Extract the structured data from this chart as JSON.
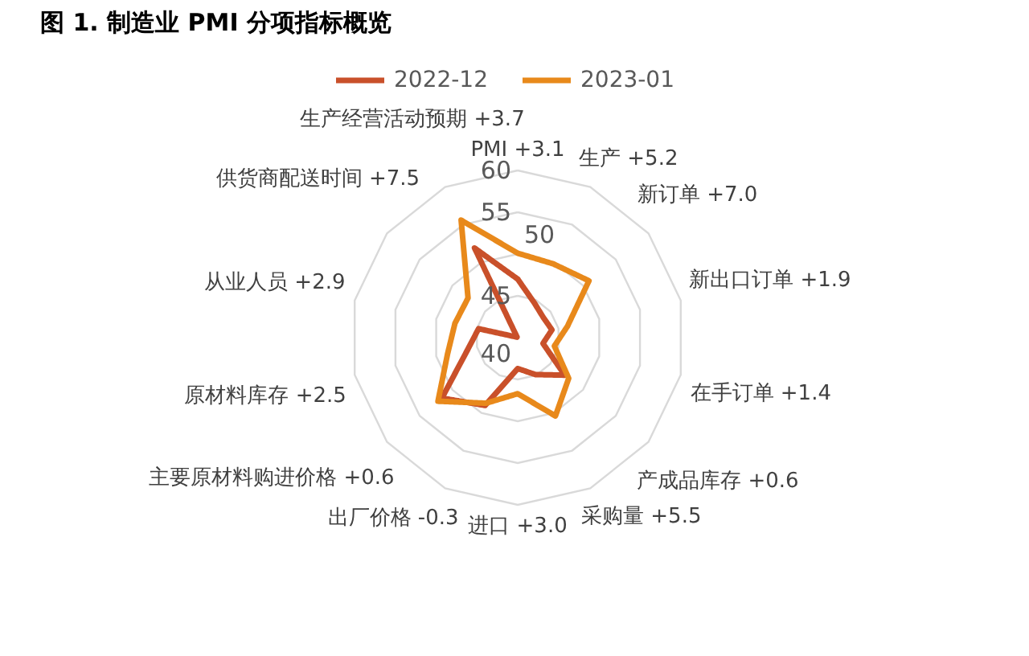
{
  "chart_data": {
    "type": "radar",
    "title": "图 1. 制造业 PMI 分项指标概览",
    "categories": [
      "PMI +3.1",
      "生产 +5.2",
      "新订单 +7.0",
      "新出口订单 +1.9",
      "在手订单 +1.4",
      "产成品库存 +0.6",
      "采购量 +5.5",
      "进口 +3.0",
      "出厂价格 -0.3",
      "主要原材料购进价格 +0.6",
      "原材料库存 +2.5",
      "从业人员 +2.9",
      "供货商配送时间 +7.5",
      "生产经营活动预期 +3.7"
    ],
    "series": [
      {
        "name": "2022-12",
        "color": "#c9502a",
        "values": [
          47.0,
          44.6,
          43.9,
          44.2,
          43.1,
          47.2,
          44.9,
          43.7,
          49.0,
          51.6,
          46.1,
          44.8,
          40.1,
          51.9
        ]
      },
      {
        "name": "2023-01",
        "color": "#e8891b",
        "values": [
          50.1,
          49.8,
          50.9,
          46.1,
          44.5,
          47.8,
          50.4,
          46.7,
          48.7,
          52.2,
          48.6,
          47.7,
          47.6,
          55.6
        ]
      }
    ],
    "ylim": [
      40,
      60
    ],
    "yticks": [
      40,
      45,
      50,
      55,
      60
    ],
    "grid": true,
    "legend": "top"
  }
}
